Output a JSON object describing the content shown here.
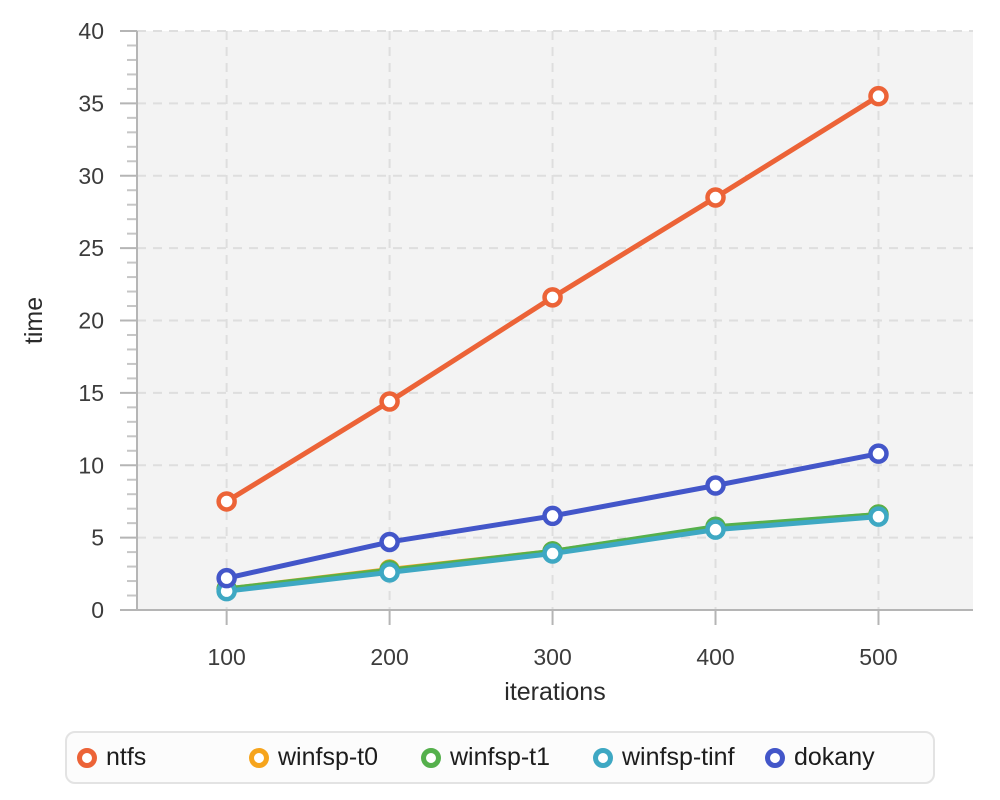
{
  "chart_data": {
    "type": "line",
    "title": "",
    "xlabel": "iterations",
    "ylabel": "time",
    "x": [
      100,
      200,
      300,
      400,
      500
    ],
    "xlim": [
      45,
      558
    ],
    "ylim": [
      0,
      40
    ],
    "x_ticks": [
      100,
      200,
      300,
      400,
      500
    ],
    "y_ticks": [
      0,
      5,
      10,
      15,
      20,
      25,
      30,
      35,
      40
    ],
    "y_minor_tick_step": 1,
    "grid": "dashed",
    "legend_position": "bottom",
    "marker_style": "open-circle",
    "series": [
      {
        "name": "ntfs",
        "color": "#ec6337",
        "values": [
          7.5,
          14.4,
          21.6,
          28.5,
          35.5
        ]
      },
      {
        "name": "winfsp-t0",
        "color": "#f6a41c",
        "values": [
          1.45,
          2.8,
          4.05,
          5.7,
          6.6
        ]
      },
      {
        "name": "winfsp-t1",
        "color": "#55b04c",
        "values": [
          1.45,
          2.75,
          4.05,
          5.75,
          6.6
        ]
      },
      {
        "name": "winfsp-tinf",
        "color": "#3ea8c3",
        "values": [
          1.3,
          2.6,
          3.9,
          5.55,
          6.45
        ]
      },
      {
        "name": "dokany",
        "color": "#4356c9",
        "values": [
          2.2,
          4.7,
          6.5,
          8.6,
          10.8
        ]
      }
    ],
    "colors": {
      "plot_background": "#f3f3f3",
      "page_background": "#ffffff",
      "gridline": "#dedede",
      "axis_line": "#b5b5b5",
      "major_tick": "#b5b5b5",
      "minor_tick": "#c6c6c6",
      "tick_label": "#3c3c3c",
      "axis_title": "#2a2a2a",
      "legend_background": "#fcfcfc",
      "legend_border": "#e3e3e3"
    }
  }
}
